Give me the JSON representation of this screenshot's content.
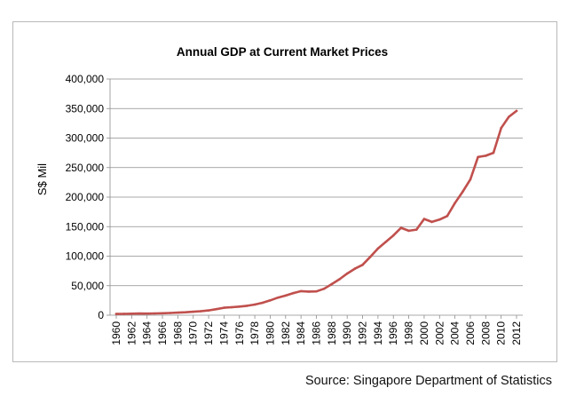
{
  "chart_data": {
    "type": "line",
    "title": "Annual GDP at Current Market Prices",
    "xlabel": "",
    "ylabel": "S$ Mil",
    "ylim": [
      0,
      400000
    ],
    "yticks": [
      0,
      50000,
      100000,
      150000,
      200000,
      250000,
      300000,
      350000,
      400000
    ],
    "ytick_labels": [
      "0",
      "50,000",
      "100,000",
      "150,000",
      "200,000",
      "250,000",
      "300,000",
      "350,000",
      "400,000"
    ],
    "xlim": [
      1960,
      2012
    ],
    "xtick_labels": [
      "1960",
      "1962",
      "1964",
      "1966",
      "1968",
      "1970",
      "1972",
      "1974",
      "1976",
      "1978",
      "1980",
      "1982",
      "1984",
      "1986",
      "1988",
      "1990",
      "1992",
      "1994",
      "1996",
      "1998",
      "2000",
      "2002",
      "2004",
      "2006",
      "2008",
      "2010",
      "2012"
    ],
    "grid": "horizontal",
    "legend": "none",
    "line_color": "#c0504d",
    "series": [
      {
        "name": "GDP",
        "x": [
          1960,
          1961,
          1962,
          1963,
          1964,
          1965,
          1966,
          1967,
          1968,
          1969,
          1970,
          1971,
          1972,
          1973,
          1974,
          1975,
          1976,
          1977,
          1978,
          1979,
          1980,
          1981,
          1982,
          1983,
          1984,
          1985,
          1986,
          1987,
          1988,
          1989,
          1990,
          1991,
          1992,
          1993,
          1994,
          1995,
          1996,
          1997,
          1998,
          1999,
          2000,
          2001,
          2002,
          2003,
          2004,
          2005,
          2006,
          2007,
          2008,
          2009,
          2010,
          2011,
          2012
        ],
        "values": [
          2150,
          2330,
          2520,
          2790,
          2720,
          2960,
          3330,
          3750,
          4320,
          5020,
          5800,
          6800,
          8100,
          10300,
          12700,
          13500,
          14600,
          16000,
          18100,
          21000,
          25100,
          29700,
          33300,
          37500,
          40700,
          40000,
          40300,
          44800,
          52700,
          60900,
          70600,
          78800,
          85200,
          98800,
          113000,
          124000,
          135000,
          148000,
          143000,
          145000,
          163000,
          158000,
          162000,
          168000,
          190000,
          209000,
          230000,
          268000,
          270000,
          275000,
          317000,
          336000,
          346000
        ]
      }
    ],
    "source": "Source: Singapore Department of Statistics"
  }
}
